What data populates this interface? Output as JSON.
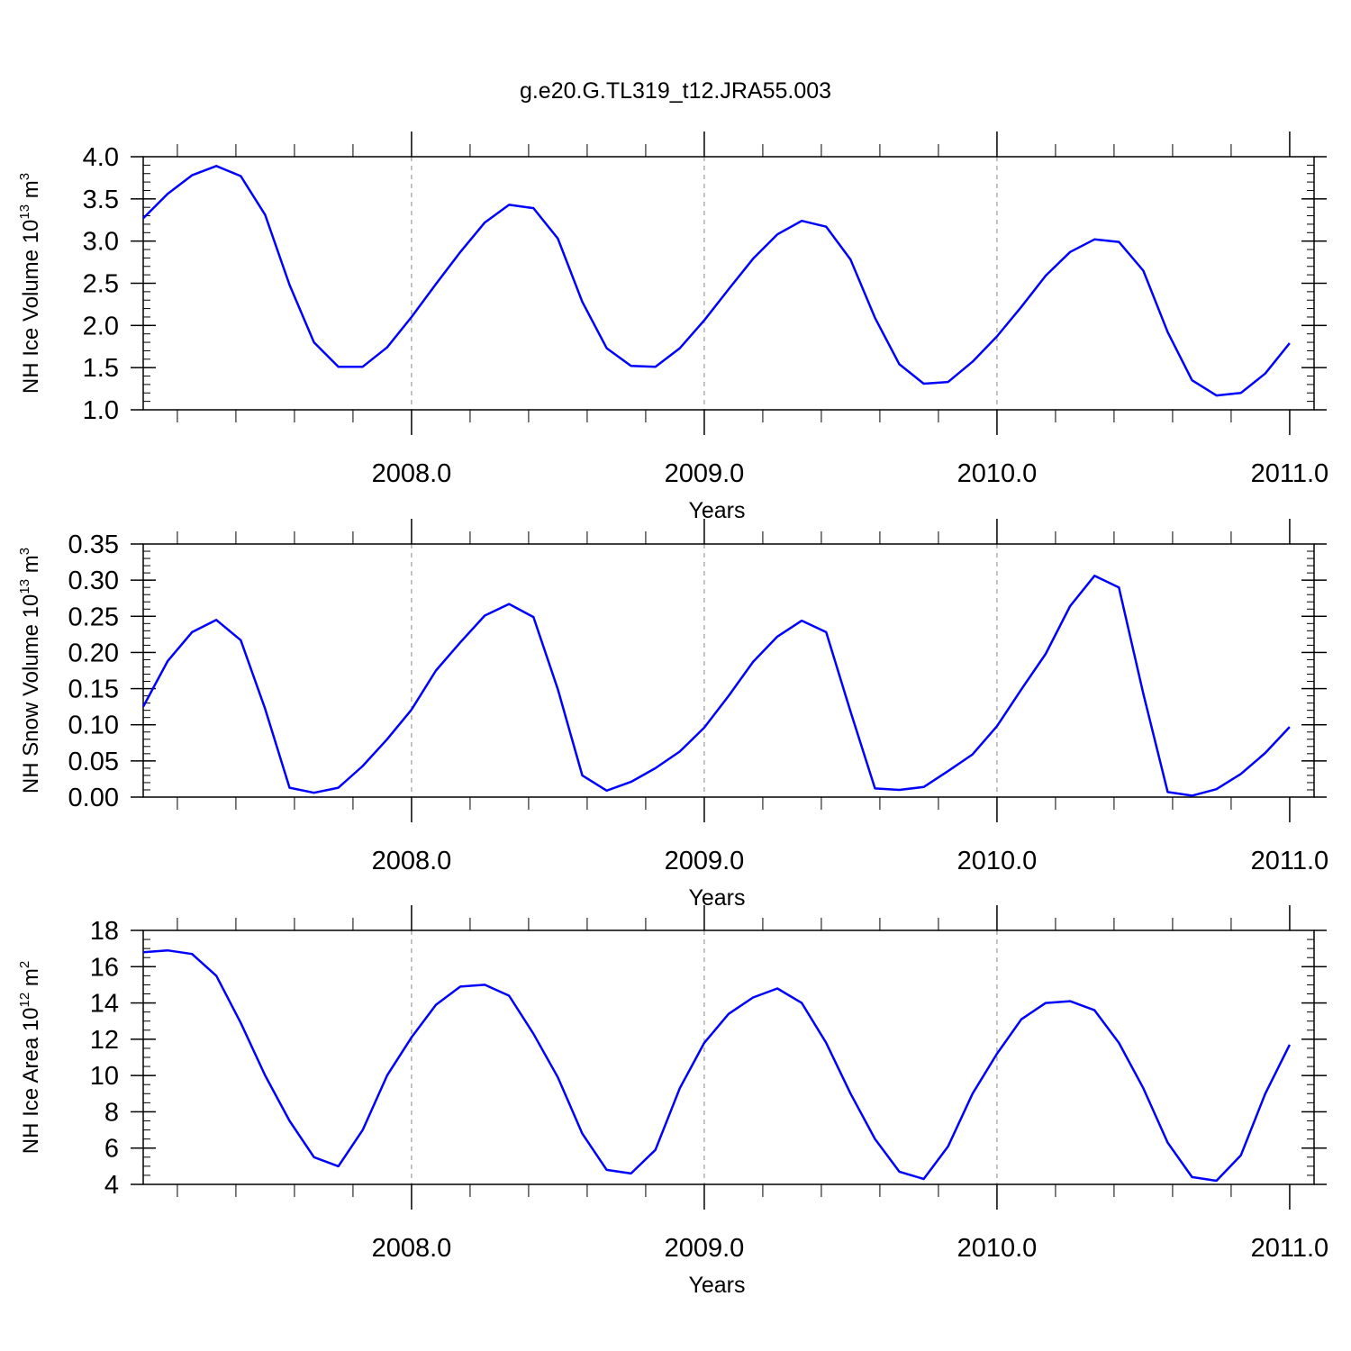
{
  "figure": {
    "title": "g.e20.G.TL319_t12.JRA55.003"
  },
  "colors": {
    "line": "#0000ff",
    "frame": "#000000",
    "grid": "#888888"
  },
  "chart_data": [
    {
      "type": "line",
      "ylabel": {
        "text": "NH Ice Volume 10",
        "exp": "13",
        "unit": " m",
        "unit_exp": "3"
      },
      "xlabel": "Years",
      "xlim": [
        2007.0833,
        2011.0833
      ],
      "ylim": [
        1.0,
        4.0
      ],
      "x_ticks": [
        2008.0,
        2009.0,
        2010.0,
        2011.0
      ],
      "x_tick_labels": [
        "2008.0",
        "2009.0",
        "2010.0",
        "2011.0"
      ],
      "y_ticks": [
        1.0,
        1.5,
        2.0,
        2.5,
        3.0,
        3.5,
        4.0
      ],
      "y_tick_labels": [
        "1.0",
        "1.5",
        "2.0",
        "2.5",
        "3.0",
        "3.5",
        "4.0"
      ],
      "y_minor_step": 0.1,
      "grid": "dashed vertical lines at year boundaries",
      "series": [
        {
          "x_start": 2007.0833,
          "x_step": 0.08333,
          "values": [
            3.27,
            3.56,
            3.78,
            3.89,
            3.77,
            3.31,
            2.48,
            1.8,
            1.51,
            1.51,
            1.74,
            2.1,
            2.49,
            2.87,
            3.22,
            3.43,
            3.39,
            3.03,
            2.28,
            1.73,
            1.52,
            1.51,
            1.73,
            2.06,
            2.43,
            2.79,
            3.08,
            3.24,
            3.17,
            2.78,
            2.09,
            1.54,
            1.31,
            1.33,
            1.57,
            1.87,
            2.22,
            2.59,
            2.87,
            3.02,
            2.99,
            2.65,
            1.92,
            1.35,
            1.17,
            1.2,
            1.43,
            1.79
          ]
        }
      ]
    },
    {
      "type": "line",
      "ylabel": {
        "text": "NH Snow Volume 10",
        "exp": "13",
        "unit": " m",
        "unit_exp": "3"
      },
      "xlabel": "Years",
      "xlim": [
        2007.0833,
        2011.0833
      ],
      "ylim": [
        0.0,
        0.35
      ],
      "x_ticks": [
        2008.0,
        2009.0,
        2010.0,
        2011.0
      ],
      "x_tick_labels": [
        "2008.0",
        "2009.0",
        "2010.0",
        "2011.0"
      ],
      "y_ticks": [
        0.0,
        0.05,
        0.1,
        0.15,
        0.2,
        0.25,
        0.3,
        0.35
      ],
      "y_tick_labels": [
        "0.00",
        "0.05",
        "0.10",
        "0.15",
        "0.20",
        "0.25",
        "0.30",
        "0.35"
      ],
      "y_minor_step": 0.01,
      "grid": "dashed vertical lines at year boundaries",
      "series": [
        {
          "x_start": 2007.0833,
          "x_step": 0.08333,
          "values": [
            0.125,
            0.188,
            0.228,
            0.245,
            0.217,
            0.122,
            0.013,
            0.006,
            0.013,
            0.043,
            0.08,
            0.121,
            0.175,
            0.214,
            0.251,
            0.267,
            0.249,
            0.149,
            0.03,
            0.009,
            0.021,
            0.04,
            0.063,
            0.096,
            0.14,
            0.187,
            0.222,
            0.244,
            0.228,
            0.118,
            0.012,
            0.01,
            0.014,
            0.036,
            0.059,
            0.098,
            0.149,
            0.198,
            0.264,
            0.306,
            0.29,
            0.143,
            0.007,
            0.002,
            0.011,
            0.032,
            0.061,
            0.097
          ]
        }
      ]
    },
    {
      "type": "line",
      "ylabel": {
        "text": "NH Ice Area 10",
        "exp": "12",
        "unit": " m",
        "unit_exp": "2"
      },
      "xlabel": "Years",
      "xlim": [
        2007.0833,
        2011.0833
      ],
      "ylim": [
        4,
        18
      ],
      "x_ticks": [
        2008.0,
        2009.0,
        2010.0,
        2011.0
      ],
      "x_tick_labels": [
        "2008.0",
        "2009.0",
        "2010.0",
        "2011.0"
      ],
      "y_ticks": [
        4,
        6,
        8,
        10,
        12,
        14,
        16,
        18
      ],
      "y_tick_labels": [
        "4",
        "6",
        "8",
        "10",
        "12",
        "14",
        "16",
        "18"
      ],
      "y_minor_step": 0.5,
      "grid": "dashed vertical lines at year boundaries",
      "series": [
        {
          "x_start": 2007.0833,
          "x_step": 0.08333,
          "values": [
            16.8,
            16.9,
            16.7,
            15.5,
            12.9,
            10.0,
            7.5,
            5.5,
            5.0,
            7.0,
            10.0,
            12.1,
            13.9,
            14.9,
            15.0,
            14.4,
            12.3,
            9.9,
            6.8,
            4.8,
            4.6,
            5.9,
            9.3,
            11.8,
            13.4,
            14.3,
            14.8,
            14.0,
            11.8,
            9.0,
            6.5,
            4.7,
            4.3,
            6.1,
            9.0,
            11.2,
            13.1,
            14.0,
            14.1,
            13.6,
            11.8,
            9.3,
            6.3,
            4.4,
            4.2,
            5.6,
            9.0,
            11.7
          ]
        }
      ]
    }
  ]
}
